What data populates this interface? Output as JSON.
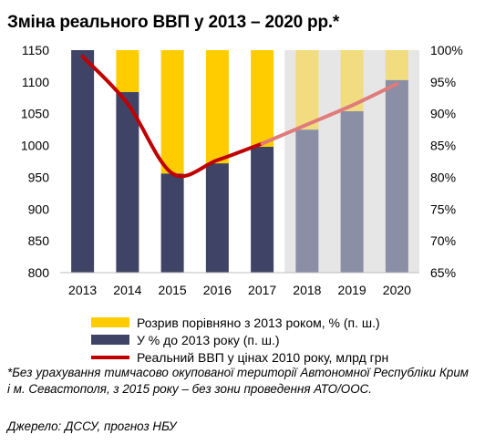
{
  "title": "Зміна реального ВВП у 2013 – 2020 рр.*",
  "chart_data": {
    "type": "bar",
    "categories": [
      "2013",
      "2014",
      "2015",
      "2016",
      "2017",
      "2018",
      "2019",
      "2020"
    ],
    "forecast_from": "2018",
    "series": [
      {
        "name": "У % до 2013 року (п. ш.)",
        "kind": "bar",
        "axis": "right",
        "values": [
          100,
          93.4,
          80.6,
          82.2,
          84.8,
          87.5,
          90.4,
          95.3
        ],
        "color": "#3f4466"
      },
      {
        "name": "Розрив порівняно з 2013 роком, % (п. ш.)",
        "kind": "stacked-bar",
        "axis": "right",
        "values": [
          0,
          6.6,
          19.4,
          17.8,
          15.2,
          12.5,
          9.6,
          4.7
        ],
        "color": "#ffcc00"
      },
      {
        "name": "Реальний ВВП у цінах 2010 року, млрд грн",
        "kind": "line",
        "axis": "left",
        "values": [
          1140,
          1066,
          956,
          977,
          1003,
          1033,
          1063,
          1097
        ],
        "color": "#c00000"
      }
    ],
    "y_left": {
      "min": 800,
      "max": 1150,
      "ticks": [
        "800",
        "850",
        "900",
        "950",
        "1000",
        "1050",
        "1100",
        "1150"
      ]
    },
    "y_right": {
      "min": 65,
      "max": 100,
      "ticks": [
        "65%",
        "70%",
        "75%",
        "80%",
        "85%",
        "90%",
        "95%",
        "100%"
      ]
    },
    "forecast_colors": {
      "bar": "#8a8fa6",
      "gap": "#f1dc80",
      "line": "#e07b7b",
      "background": "#e6e6e6"
    },
    "legend_position": "bottom"
  },
  "legend": {
    "gap": "Розрив порівняно з 2013 роком, % (п. ш.)",
    "pct": "У % до 2013 року (п. ш.)",
    "gdp": "Реальний ВВП у цінах 2010 року, млрд грн"
  },
  "footnote": "*Без урахування тимчасово окупованої території Автономної Республіки Крим і м. Севастополя, з 2015 року – без зони проведення АТО/ООС.",
  "source": "Джерело: ДССУ, прогноз НБУ"
}
